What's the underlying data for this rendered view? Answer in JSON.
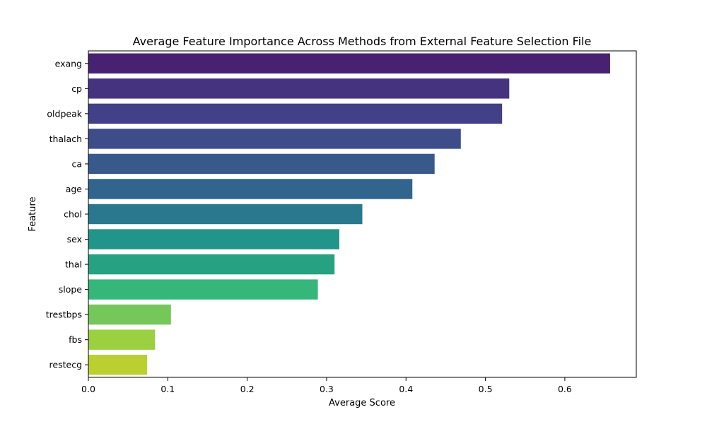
{
  "chart_data": {
    "type": "bar",
    "orientation": "horizontal",
    "title": "Average Feature Importance Across Methods from External Feature Selection File",
    "xlabel": "Average Score",
    "ylabel": "Feature",
    "categories": [
      "exang",
      "cp",
      "oldpeak",
      "thalach",
      "ca",
      "age",
      "chol",
      "sex",
      "thal",
      "slope",
      "trestbps",
      "fbs",
      "restecg"
    ],
    "values": [
      0.657,
      0.53,
      0.521,
      0.469,
      0.436,
      0.408,
      0.345,
      0.316,
      0.31,
      0.289,
      0.104,
      0.084,
      0.074
    ],
    "colors": [
      "#482172",
      "#46337f",
      "#424086",
      "#3e4c8a",
      "#38598c",
      "#32658e",
      "#2a788e",
      "#22958b",
      "#26a283",
      "#35b779",
      "#75c75a",
      "#9bd040",
      "#bccf30"
    ],
    "xlim": [
      0,
      0.69
    ],
    "xticks": [
      0,
      0.1,
      0.2,
      0.3,
      0.4,
      0.5,
      0.6
    ],
    "xtick_labels": [
      "0.0",
      "0.1",
      "0.2",
      "0.3",
      "0.4",
      "0.5",
      "0.6"
    ],
    "grid": false,
    "legend": "none"
  }
}
